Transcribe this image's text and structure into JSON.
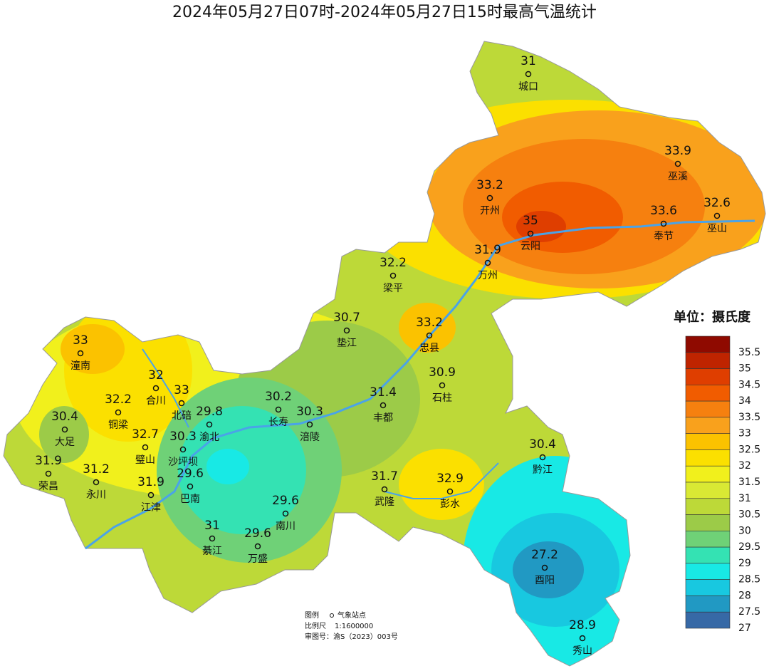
{
  "title": "2024年05月27日07时-2024年05月27日15时最高气温统计",
  "stations": [
    {
      "name": "城口",
      "value": 31
    },
    {
      "name": "巫溪",
      "value": 33.9
    },
    {
      "name": "开州",
      "value": 33.2
    },
    {
      "name": "云阳",
      "value": 35
    },
    {
      "name": "奉节",
      "value": 33.6
    },
    {
      "name": "巫山",
      "value": 32.6
    },
    {
      "name": "万州",
      "value": 31.9
    },
    {
      "name": "梁平",
      "value": 32.2
    },
    {
      "name": "垫江",
      "value": 30.7
    },
    {
      "name": "忠县",
      "value": 33.2
    },
    {
      "name": "潼南",
      "value": 33
    },
    {
      "name": "合川",
      "value": 32
    },
    {
      "name": "北碚",
      "value": 33
    },
    {
      "name": "铜梁",
      "value": 32.2
    },
    {
      "name": "大足",
      "value": 30.4
    },
    {
      "name": "渝北",
      "value": 29.8
    },
    {
      "name": "长寿",
      "value": 30.2
    },
    {
      "name": "涪陵",
      "value": 30.3
    },
    {
      "name": "丰都",
      "value": 31.4
    },
    {
      "name": "石柱",
      "value": 30.9
    },
    {
      "name": "璧山",
      "value": 32.7
    },
    {
      "name": "沙坪坝",
      "value": 30.3
    },
    {
      "name": "荣昌",
      "value": 31.9
    },
    {
      "name": "永川",
      "value": 31.2
    },
    {
      "name": "巴南",
      "value": 29.6
    },
    {
      "name": "江津",
      "value": 31.9
    },
    {
      "name": "武隆",
      "value": 31.7
    },
    {
      "name": "彭水",
      "value": 32.9
    },
    {
      "name": "黔江",
      "value": 30.4
    },
    {
      "name": "南川",
      "value": 29.6
    },
    {
      "name": "綦江",
      "value": 31
    },
    {
      "name": "万盛",
      "value": 29.6
    },
    {
      "name": "酉阳",
      "value": 27.2
    },
    {
      "name": "秀山",
      "value": 28.9
    }
  ],
  "legend": {
    "unit": "单位：摄氏度",
    "levels": [
      {
        "value": 35.5,
        "color": "#8f0a00"
      },
      {
        "value": 35,
        "color": "#bf2400"
      },
      {
        "value": 34.5,
        "color": "#df3e00"
      },
      {
        "value": 34,
        "color": "#f15c00"
      },
      {
        "value": 33.5,
        "color": "#f6800f"
      },
      {
        "value": 33,
        "color": "#f9a11c"
      },
      {
        "value": 32.5,
        "color": "#fbc200"
      },
      {
        "value": 32,
        "color": "#fbe000"
      },
      {
        "value": 31.5,
        "color": "#f1f01c"
      },
      {
        "value": 31,
        "color": "#d9e934"
      },
      {
        "value": 30.5,
        "color": "#bdd938"
      },
      {
        "value": 30,
        "color": "#9ccb48"
      },
      {
        "value": 29.5,
        "color": "#6fd177"
      },
      {
        "value": 29,
        "color": "#34e2b3"
      },
      {
        "value": 28.5,
        "color": "#18e9e5"
      },
      {
        "value": 28,
        "color": "#18c8e0"
      },
      {
        "value": 27.5,
        "color": "#2199c3"
      },
      {
        "value": 27,
        "color": "#3769a6"
      }
    ]
  },
  "footnote": {
    "legend_label": "图例",
    "station_label": "气象站点",
    "scale_label": "比例尺",
    "scale": "1:1600000",
    "approval": "审图号：渝S（2023）003号"
  }
}
